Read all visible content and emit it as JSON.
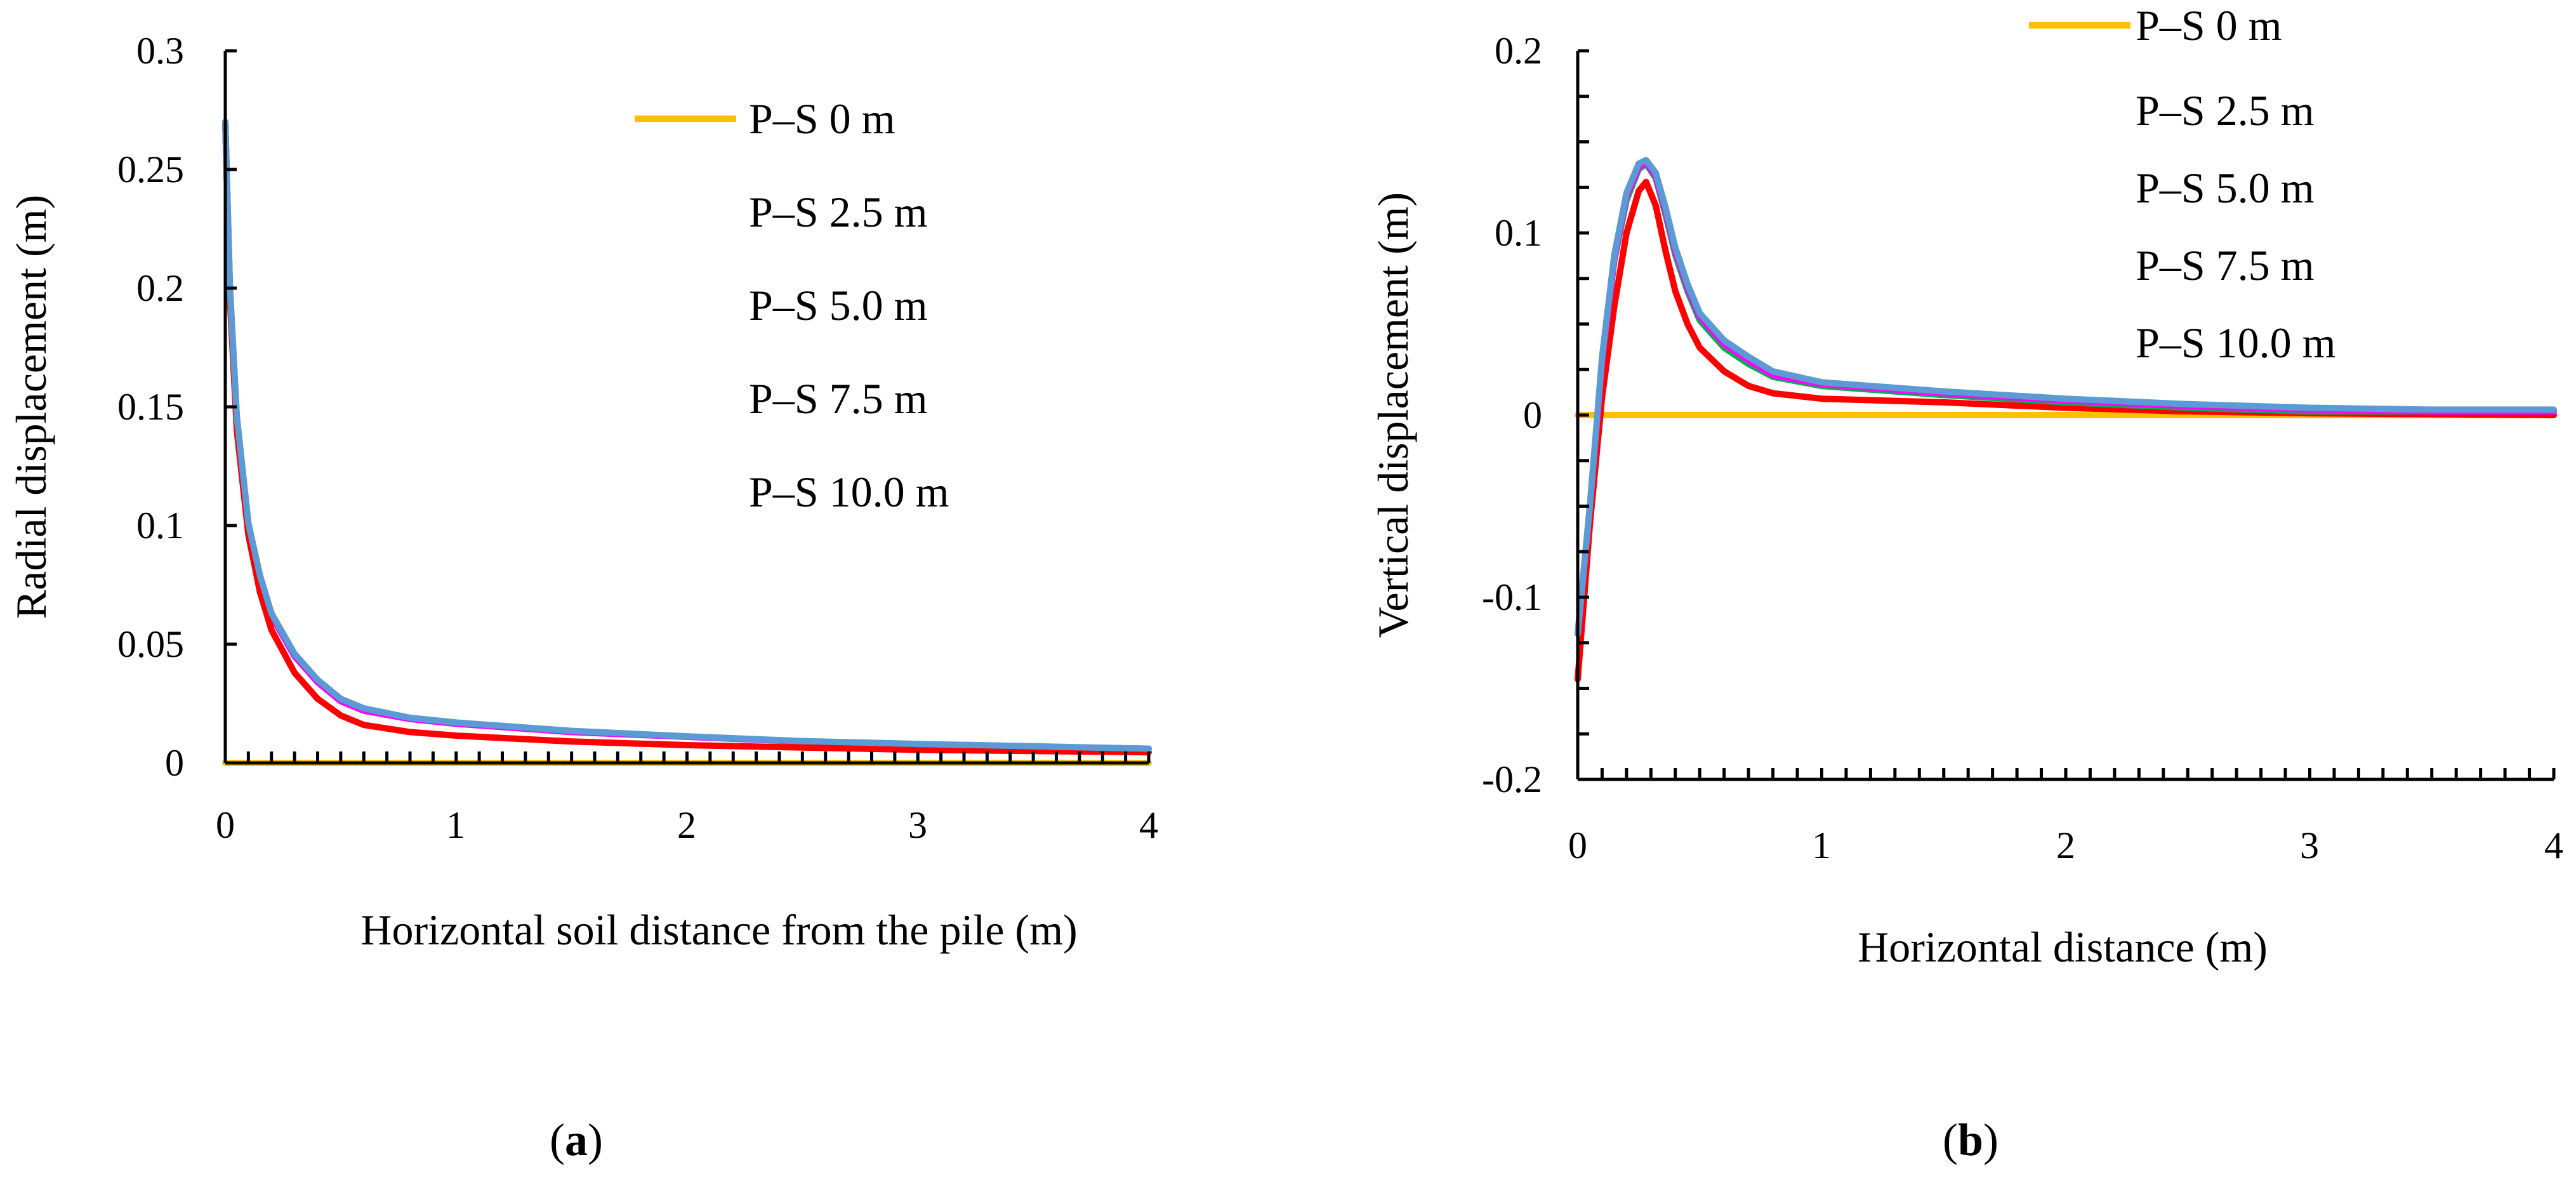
{
  "colors": {
    "P-S 0 m": "#FFC000",
    "P-S 2.5 m": "#FF0000",
    "P-S 5.0 m": "#00B050",
    "P-S 7.5 m": "#FF00FF",
    "P-S 10.0 m": "#5B9BD5"
  },
  "panels": {
    "a": {
      "label_prefix": "(",
      "label_letter": "a",
      "label_suffix": ")"
    },
    "b": {
      "label_prefix": "(",
      "label_letter": "b",
      "label_suffix": ")"
    }
  },
  "chart_data": [
    {
      "id": "a",
      "type": "line",
      "title": "",
      "xlabel": "Horizontal soil distance from the pile (m)",
      "ylabel": "Radial displacement (m)",
      "xlim": [
        0,
        4
      ],
      "ylim": [
        0,
        0.3
      ],
      "xticks": [
        "0",
        "1",
        "2",
        "3",
        "4"
      ],
      "yticks": [
        "0",
        "0.05",
        "0.1",
        "0.15",
        "0.2",
        "0.25",
        "0.3"
      ],
      "legend": [
        "P–S 0 m",
        "P–S 2.5 m",
        "P–S 5.0 m",
        "P–S 7.5 m",
        "P–S 10.0 m"
      ],
      "legend_position": "top-right",
      "grid": false,
      "series": [
        {
          "name": "P–S 0 m",
          "color_key": "P-S 0 m",
          "x": [
            0,
            4
          ],
          "y": [
            0,
            0
          ]
        },
        {
          "name": "P–S 5.0 m",
          "color_key": "P-S 5.0 m",
          "x": [
            0,
            0.02,
            0.05,
            0.1,
            0.15,
            0.2,
            0.3,
            0.4,
            0.5,
            0.6,
            0.8,
            1.0,
            1.5,
            2.0,
            2.5,
            3.0,
            3.5,
            4.0
          ],
          "y": [
            0.27,
            0.2,
            0.145,
            0.1,
            0.078,
            0.062,
            0.045,
            0.034,
            0.026,
            0.022,
            0.0185,
            0.0165,
            0.013,
            0.011,
            0.009,
            0.0078,
            0.0068,
            0.006
          ]
        },
        {
          "name": "P–S 7.5 m",
          "color_key": "P-S 7.5 m",
          "x": [
            0,
            0.02,
            0.05,
            0.1,
            0.15,
            0.2,
            0.3,
            0.4,
            0.5,
            0.6,
            0.8,
            1.0,
            1.5,
            2.0,
            2.5,
            3.0,
            3.5,
            4.0
          ],
          "y": [
            0.27,
            0.2,
            0.145,
            0.1,
            0.078,
            0.062,
            0.045,
            0.034,
            0.026,
            0.022,
            0.0185,
            0.0165,
            0.013,
            0.011,
            0.009,
            0.0078,
            0.0068,
            0.006
          ]
        },
        {
          "name": "P–S 2.5 m",
          "color_key": "P-S 2.5 m",
          "x": [
            0,
            0.02,
            0.05,
            0.1,
            0.15,
            0.2,
            0.3,
            0.4,
            0.5,
            0.6,
            0.8,
            1.0,
            1.5,
            2.0,
            2.5,
            3.0,
            3.5,
            4.0
          ],
          "y": [
            0.27,
            0.195,
            0.14,
            0.096,
            0.072,
            0.056,
            0.038,
            0.027,
            0.02,
            0.016,
            0.013,
            0.0115,
            0.009,
            0.0075,
            0.0065,
            0.0055,
            0.005,
            0.0045
          ]
        },
        {
          "name": "P–S 10.0 m",
          "color_key": "P-S 10.0 m",
          "x": [
            0,
            0.02,
            0.05,
            0.1,
            0.15,
            0.2,
            0.3,
            0.4,
            0.5,
            0.6,
            0.8,
            1.0,
            1.5,
            2.0,
            2.5,
            3.0,
            3.5,
            4.0
          ],
          "y": [
            0.27,
            0.2,
            0.146,
            0.101,
            0.079,
            0.063,
            0.046,
            0.035,
            0.027,
            0.023,
            0.019,
            0.017,
            0.0135,
            0.0112,
            0.0092,
            0.008,
            0.007,
            0.006
          ]
        }
      ]
    },
    {
      "id": "b",
      "type": "line",
      "title": "",
      "xlabel": "Horizontal distance (m)",
      "ylabel": "Vertical displacement (m)",
      "xlim": [
        0,
        4
      ],
      "ylim": [
        -0.2,
        0.2
      ],
      "xticks": [
        "0",
        "1",
        "2",
        "3",
        "4"
      ],
      "yticks": [
        "-0.2",
        "-0.1",
        "0",
        "0.1",
        "0.2"
      ],
      "legend": [
        "P–S 0 m",
        "P–S 2.5 m",
        "P–S 5.0 m",
        "P–S 7.5 m",
        "P–S 10.0 m"
      ],
      "legend_position": "top-right",
      "grid": false,
      "series": [
        {
          "name": "P–S 0 m",
          "color_key": "P-S 0 m",
          "x": [
            0,
            4
          ],
          "y": [
            0,
            0
          ]
        },
        {
          "name": "P–S 2.5 m",
          "color_key": "P-S 2.5 m",
          "x": [
            0,
            0.05,
            0.1,
            0.15,
            0.2,
            0.25,
            0.28,
            0.32,
            0.36,
            0.4,
            0.45,
            0.5,
            0.6,
            0.7,
            0.8,
            1.0,
            1.5,
            2.0,
            2.5,
            3.0,
            3.5,
            4.0
          ],
          "y": [
            -0.145,
            -0.06,
            0.01,
            0.06,
            0.1,
            0.123,
            0.128,
            0.115,
            0.09,
            0.068,
            0.05,
            0.037,
            0.024,
            0.016,
            0.012,
            0.009,
            0.007,
            0.004,
            0.002,
            0.001,
            0.0005,
            0.0
          ]
        },
        {
          "name": "P–S 5.0 m",
          "color_key": "P-S 5.0 m",
          "x": [
            0,
            0.05,
            0.1,
            0.15,
            0.2,
            0.25,
            0.28,
            0.32,
            0.36,
            0.4,
            0.45,
            0.5,
            0.6,
            0.7,
            0.8,
            1.0,
            1.5,
            2.0,
            2.5,
            3.0,
            3.5,
            4.0
          ],
          "y": [
            -0.12,
            -0.05,
            0.03,
            0.085,
            0.118,
            0.135,
            0.138,
            0.13,
            0.11,
            0.088,
            0.068,
            0.052,
            0.037,
            0.028,
            0.021,
            0.016,
            0.011,
            0.007,
            0.004,
            0.002,
            0.002,
            0.002
          ]
        },
        {
          "name": "P–S 7.5 m",
          "color_key": "P-S 7.5 m",
          "x": [
            0,
            0.05,
            0.1,
            0.15,
            0.2,
            0.25,
            0.28,
            0.32,
            0.36,
            0.4,
            0.45,
            0.5,
            0.6,
            0.7,
            0.8,
            1.0,
            1.5,
            2.0,
            2.5,
            3.0,
            3.5,
            4.0
          ],
          "y": [
            -0.12,
            -0.05,
            0.03,
            0.086,
            0.12,
            0.136,
            0.139,
            0.131,
            0.112,
            0.09,
            0.07,
            0.054,
            0.039,
            0.03,
            0.022,
            0.017,
            0.012,
            0.008,
            0.005,
            0.003,
            0.002,
            0.002
          ]
        },
        {
          "name": "P–S 10.0 m",
          "color_key": "P-S 10.0 m",
          "x": [
            0,
            0.05,
            0.1,
            0.15,
            0.2,
            0.25,
            0.28,
            0.32,
            0.36,
            0.4,
            0.45,
            0.5,
            0.6,
            0.7,
            0.8,
            1.0,
            1.5,
            2.0,
            2.5,
            3.0,
            3.5,
            4.0
          ],
          "y": [
            -0.12,
            -0.05,
            0.032,
            0.088,
            0.122,
            0.138,
            0.14,
            0.133,
            0.114,
            0.092,
            0.072,
            0.056,
            0.041,
            0.032,
            0.024,
            0.018,
            0.013,
            0.009,
            0.006,
            0.004,
            0.003,
            0.003
          ]
        }
      ]
    }
  ]
}
